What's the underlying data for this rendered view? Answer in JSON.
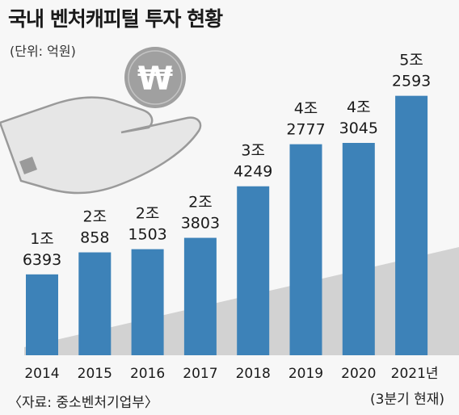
{
  "title": "국내 벤처캐피털 투자 현황",
  "unit_label": "(단위: 억원)",
  "source_label": "〈자료: 중소벤처기업부〉",
  "icon": "won-coin-in-hand-icon",
  "colors": {
    "bar": "#3d82b8",
    "shadow": "#c9c9c9",
    "coin": "#9c9c9c",
    "text": "#1a1a1a"
  },
  "chart_data": {
    "type": "bar",
    "categories": [
      "2014",
      "2015",
      "2016",
      "2017",
      "2018",
      "2019",
      "2020",
      "2021년"
    ],
    "category_note": "(3분기 현재)",
    "values": [
      16393,
      20858,
      21503,
      23803,
      34249,
      42777,
      43045,
      52593
    ],
    "label_top": [
      "1조",
      "2조",
      "2조",
      "2조",
      "3조",
      "4조",
      "4조",
      "5조"
    ],
    "label_bottom": [
      "6393",
      "858",
      "1503",
      "3803",
      "4249",
      "2777",
      "3045",
      "2593"
    ],
    "ylim": [
      0,
      60000
    ]
  }
}
